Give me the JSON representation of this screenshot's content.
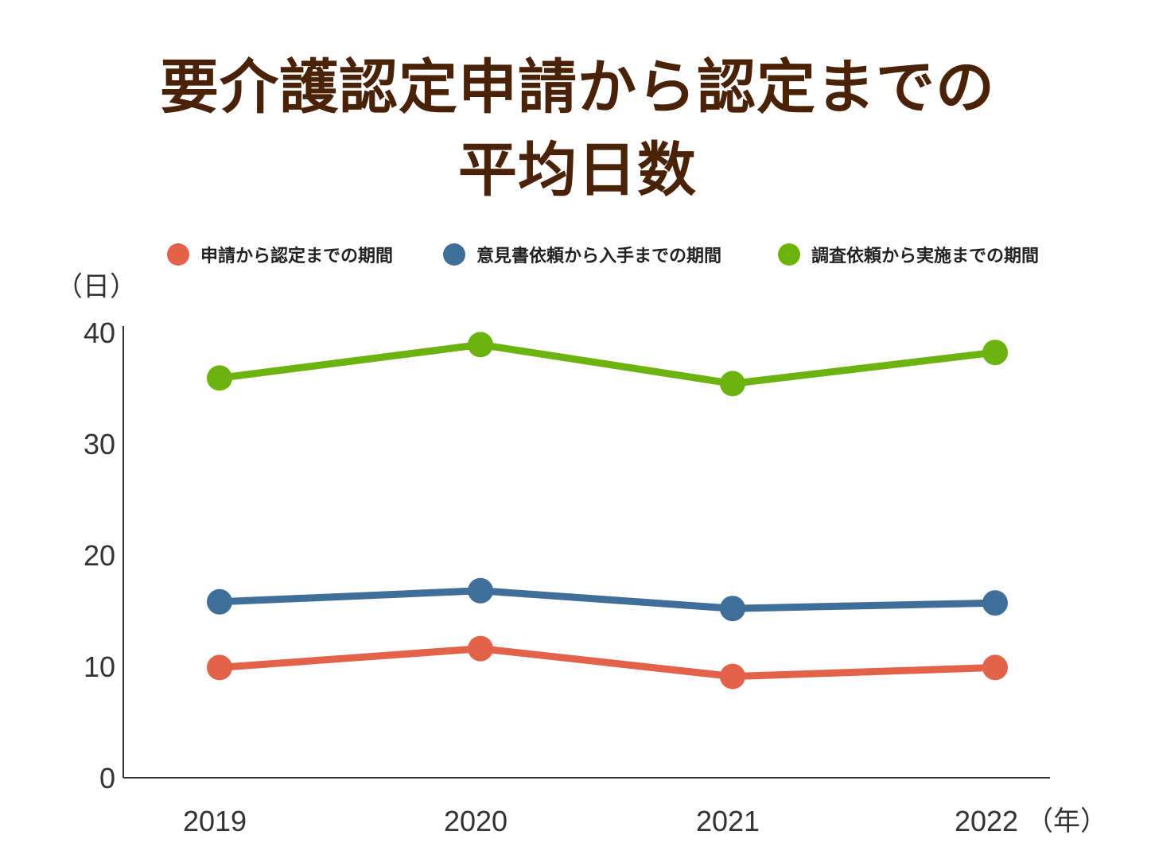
{
  "chart_data": {
    "type": "line",
    "title": "要介護認定申請から認定までの平均日数",
    "title_lines": [
      "要介護認定申請から認定までの",
      "平均日数"
    ],
    "ylabel": "（日）",
    "xlabel": "（年）",
    "categories": [
      "2019",
      "2020",
      "2021",
      "2022"
    ],
    "ylim": [
      0,
      40
    ],
    "yticks": [
      0,
      10,
      20,
      30,
      40
    ],
    "grid": false,
    "legend_position": "top",
    "series": [
      {
        "name": "申請から認定までの期間",
        "color": "#e2624a",
        "values": [
          9.9,
          11.6,
          9.1,
          9.9
        ]
      },
      {
        "name": "意見書依頼から入手までの期間",
        "color": "#3f6f98",
        "values": [
          15.8,
          16.8,
          15.2,
          15.7
        ]
      },
      {
        "name": "調査依頼から実施までの期間",
        "color": "#6cb30f",
        "values": [
          35.9,
          38.9,
          35.4,
          38.2
        ]
      }
    ]
  }
}
